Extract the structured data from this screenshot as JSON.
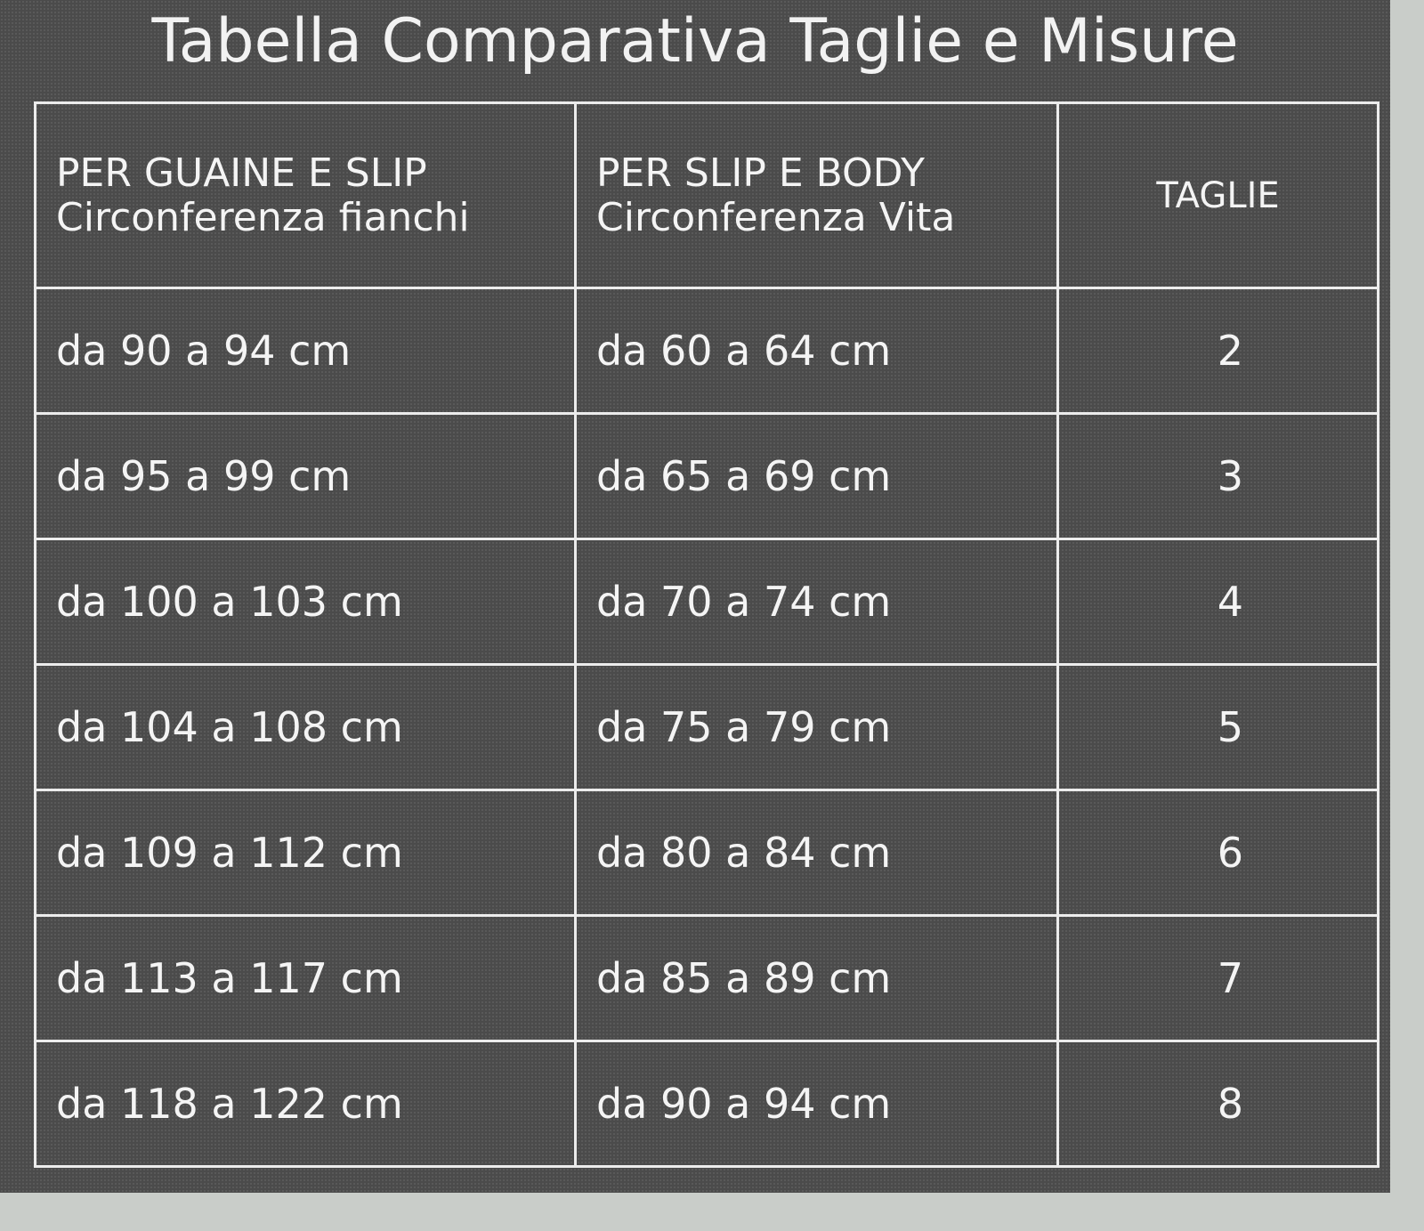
{
  "title": "Tabella Comparativa Taglie e Misure",
  "headers": [
    {
      "line1": "PER GUAINE E SLIP",
      "line2": "Circonferenza fianchi"
    },
    {
      "line1": "PER SLIP E BODY",
      "line2": "Circonferenza Vita"
    },
    {
      "line1": "TAGLIE"
    }
  ],
  "rows": [
    {
      "fianchi": "da 90 a 94 cm",
      "vita": "da 60 a 64 cm",
      "taglia": "2"
    },
    {
      "fianchi": "da 95 a 99 cm",
      "vita": "da 65 a 69 cm",
      "taglia": "3"
    },
    {
      "fianchi": "da 100 a 103 cm",
      "vita": "da 70 a 74 cm",
      "taglia": "4"
    },
    {
      "fianchi": "da 104 a 108 cm",
      "vita": "da 75 a 79 cm",
      "taglia": "5"
    },
    {
      "fianchi": "da 109 a 112 cm",
      "vita": "da 80 a 84 cm",
      "taglia": "6"
    },
    {
      "fianchi": "da 113 a 117 cm",
      "vita": "da 85 a 89 cm",
      "taglia": "7"
    },
    {
      "fianchi": "da 118 a 122 cm",
      "vita": "da 90 a 94 cm",
      "taglia": "8"
    }
  ]
}
